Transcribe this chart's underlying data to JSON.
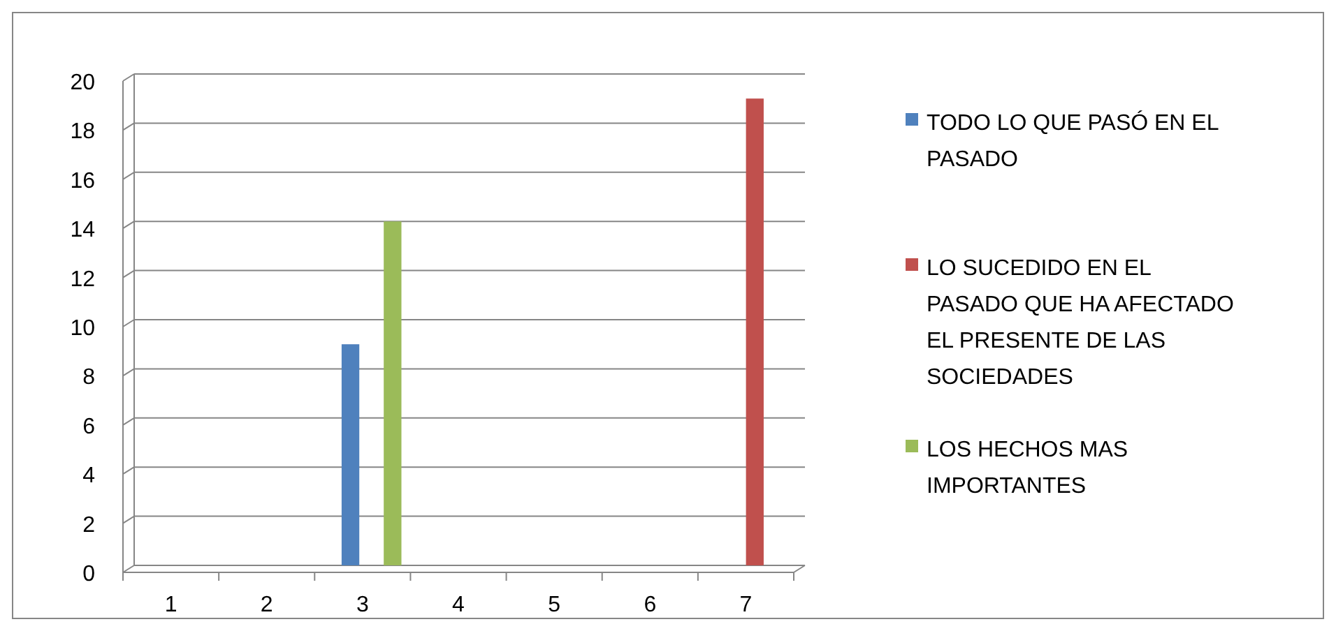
{
  "chart_data": {
    "type": "bar",
    "categories": [
      "1",
      "2",
      "3",
      "4",
      "5",
      "6",
      "7"
    ],
    "series": [
      {
        "name": "TODO LO QUE PASÓ EN EL PASADO",
        "color": "#4f81bd",
        "values": [
          null,
          null,
          9,
          null,
          null,
          null,
          null
        ]
      },
      {
        "name": "LO SUCEDIDO EN EL PASADO QUE HA AFECTADO EL PRESENTE DE LAS SOCIEDADES",
        "color": "#c0504d",
        "values": [
          null,
          null,
          null,
          null,
          null,
          null,
          19
        ]
      },
      {
        "name": "LOS HECHOS MAS IMPORTANTES",
        "color": "#9bbb59",
        "values": [
          null,
          null,
          14,
          null,
          null,
          null,
          null
        ]
      }
    ],
    "ylim": [
      0,
      20
    ],
    "yticks": [
      0,
      2,
      4,
      6,
      8,
      10,
      12,
      14,
      16,
      18,
      20
    ],
    "grid": "y",
    "legend": "right"
  }
}
